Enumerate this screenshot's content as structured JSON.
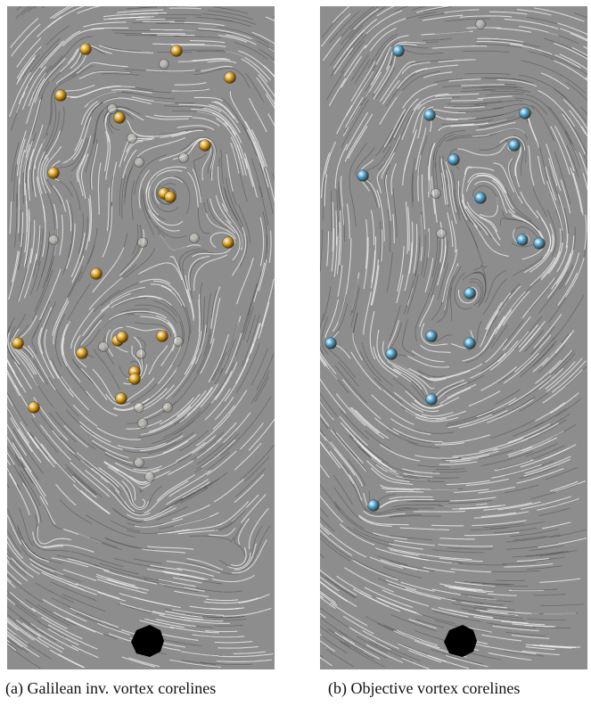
{
  "figure": {
    "panels": [
      {
        "id": "a",
        "caption": "(a) Galilean inv. vortex corelines",
        "marker_color": "#e0a21c",
        "marker_count": 20,
        "ghost_count": 16
      },
      {
        "id": "b",
        "caption": "(b) Objective vortex corelines",
        "marker_color": "#4aa3d6",
        "marker_count": 16,
        "ghost_count": 3
      }
    ],
    "background_color": "#8d8d8d",
    "streak_color": "#f2f2f2",
    "cylinder_color": "#000000"
  }
}
